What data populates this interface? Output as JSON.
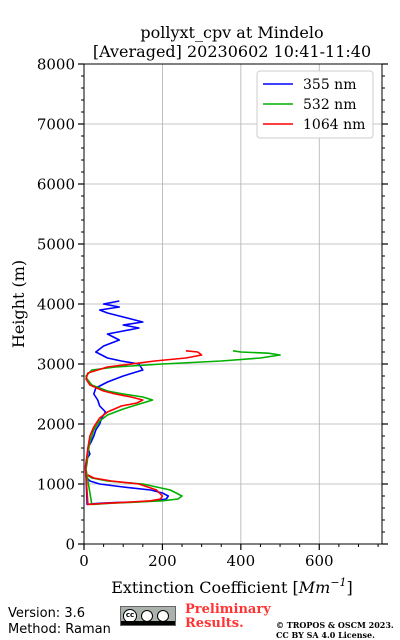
{
  "chart_data": {
    "type": "line",
    "title": "pollyxt_cpv at Mindelo",
    "subtitle": "[Averaged] 20230602 10:41-11:40",
    "xlabel": "Extinction Coefficient [Mm⁻¹]",
    "ylabel": "Height (m)",
    "xlim": [
      0,
      760
    ],
    "ylim": [
      0,
      8000
    ],
    "x_ticks": [
      0,
      200,
      400,
      600
    ],
    "y_ticks": [
      0,
      1000,
      2000,
      3000,
      4000,
      5000,
      6000,
      7000,
      8000
    ],
    "grid": true,
    "legend_position": "top-right",
    "series": [
      {
        "name": "355 nm",
        "color": "#0000ff",
        "x": [
          5,
          8,
          15,
          40,
          100,
          170,
          200,
          215,
          210,
          180,
          130,
          80,
          45,
          22,
          8,
          4,
          6,
          15,
          10,
          18,
          25,
          30,
          40,
          45,
          55,
          40,
          35,
          25,
          30,
          60,
          100,
          150,
          140,
          95,
          60,
          30,
          50,
          90,
          60,
          100,
          140,
          100,
          150,
          120,
          90,
          60,
          40,
          90,
          50,
          90
        ],
        "y": [
          1160,
          1100,
          1050,
          1000,
          950,
          900,
          850,
          800,
          750,
          720,
          700,
          690,
          680,
          670,
          660,
          1300,
          1400,
          1500,
          1600,
          1700,
          1800,
          1900,
          2000,
          2100,
          2200,
          2300,
          2400,
          2500,
          2600,
          2700,
          2800,
          2900,
          3000,
          3050,
          3100,
          3200,
          3300,
          3400,
          3500,
          3550,
          3600,
          3650,
          3700,
          3750,
          3800,
          3850,
          3900,
          3950,
          4000,
          4050
        ]
      },
      {
        "name": "532 nm",
        "color": "#00b000",
        "x": [
          8,
          20,
          60,
          150,
          220,
          250,
          240,
          200,
          140,
          70,
          20,
          5,
          8,
          10,
          15,
          25,
          40,
          60,
          100,
          150,
          175,
          150,
          100,
          60,
          20,
          8,
          5,
          20,
          80,
          200,
          350,
          450,
          500,
          470,
          400,
          380
        ],
        "y": [
          1150,
          1100,
          1050,
          1000,
          900,
          800,
          750,
          720,
          700,
          680,
          660,
          1250,
          1350,
          1500,
          1700,
          1900,
          2050,
          2150,
          2250,
          2350,
          2400,
          2450,
          2500,
          2550,
          2650,
          2750,
          2800,
          2900,
          2950,
          3000,
          3050,
          3100,
          3150,
          3180,
          3200,
          3220
        ]
      },
      {
        "name": "1064 nm",
        "color": "#ff0000",
        "x": [
          10,
          25,
          70,
          140,
          185,
          200,
          195,
          170,
          120,
          60,
          10,
          4,
          6,
          10,
          15,
          25,
          40,
          60,
          95,
          135,
          150,
          120,
          80,
          50,
          15,
          5,
          10,
          60,
          180,
          260,
          300,
          290,
          260
        ],
        "y": [
          1150,
          1100,
          1050,
          1000,
          900,
          800,
          750,
          720,
          700,
          680,
          660,
          1250,
          1400,
          1600,
          1800,
          1950,
          2100,
          2200,
          2300,
          2350,
          2400,
          2450,
          2500,
          2550,
          2650,
          2750,
          2850,
          2950,
          3050,
          3100,
          3150,
          3200,
          3220
        ]
      }
    ]
  },
  "footer": {
    "version": "Version: 3.6",
    "method": "Method: Raman",
    "preliminary_line1": "Preliminary",
    "preliminary_line2": "Results.",
    "copyright_line1": "© TROPOS & OSCM 2023.",
    "copyright_line2": "CC BY SA 4.0 License.",
    "license_badge_icon": "cc-by-sa-icon"
  }
}
